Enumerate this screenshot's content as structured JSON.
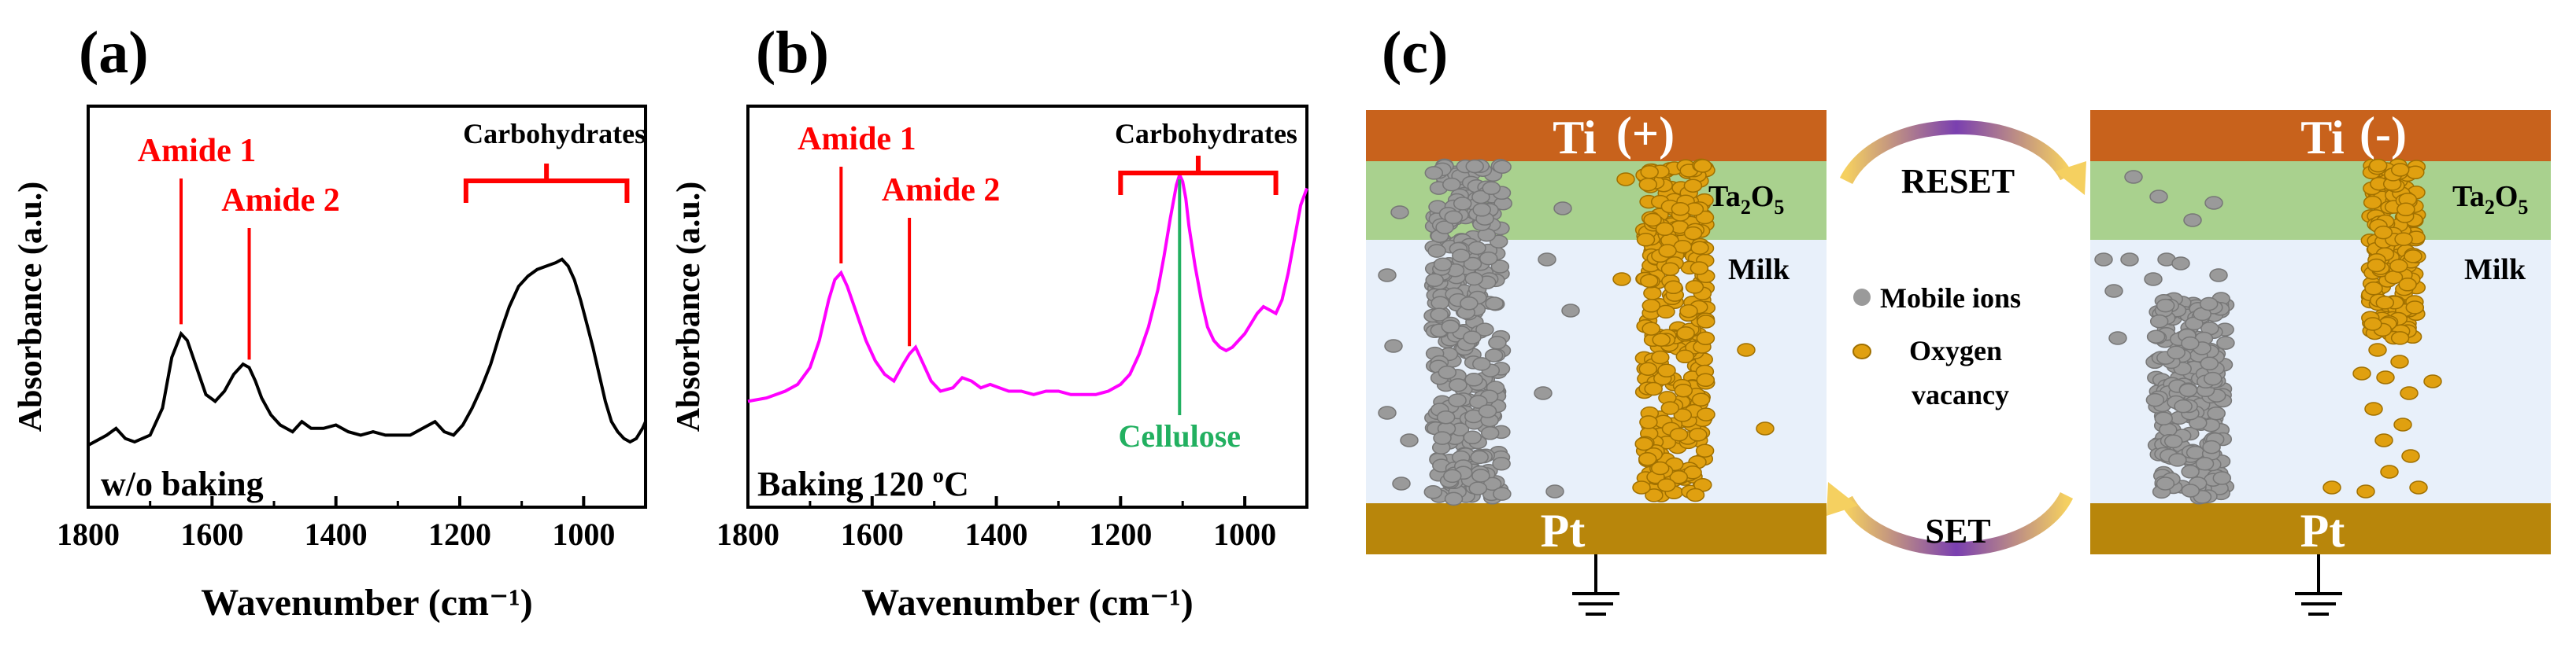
{
  "chart_data": [
    {
      "type": "line",
      "panel": "(a)",
      "annotation": "w/o baking",
      "xlabel": "Wavenumber (cm⁻¹)",
      "ylabel": "Absorbance (a.u.)",
      "xlim": [
        1800,
        900
      ],
      "ylim": [
        0,
        1
      ],
      "xticks": [
        "1800",
        "1600",
        "1400",
        "1200",
        "1000"
      ],
      "series": [
        {
          "name": "w/o baking",
          "color": "#000000",
          "x": [
            1800,
            1770,
            1755,
            1740,
            1725,
            1700,
            1680,
            1665,
            1650,
            1640,
            1625,
            1610,
            1595,
            1580,
            1565,
            1550,
            1540,
            1530,
            1520,
            1505,
            1490,
            1470,
            1455,
            1440,
            1420,
            1400,
            1380,
            1360,
            1340,
            1320,
            1300,
            1280,
            1260,
            1240,
            1225,
            1210,
            1195,
            1180,
            1165,
            1150,
            1135,
            1120,
            1105,
            1090,
            1075,
            1060,
            1045,
            1035,
            1025,
            1015,
            1005,
            995,
            985,
            975,
            965,
            955,
            945,
            935,
            925,
            915,
            905,
            900
          ],
          "y": [
            0.09,
            0.12,
            0.14,
            0.11,
            0.1,
            0.12,
            0.2,
            0.35,
            0.42,
            0.4,
            0.32,
            0.24,
            0.22,
            0.25,
            0.3,
            0.33,
            0.32,
            0.28,
            0.23,
            0.18,
            0.15,
            0.13,
            0.16,
            0.14,
            0.14,
            0.15,
            0.13,
            0.12,
            0.13,
            0.12,
            0.12,
            0.12,
            0.14,
            0.16,
            0.13,
            0.12,
            0.15,
            0.2,
            0.26,
            0.33,
            0.42,
            0.5,
            0.56,
            0.59,
            0.61,
            0.62,
            0.63,
            0.64,
            0.62,
            0.58,
            0.52,
            0.45,
            0.38,
            0.3,
            0.22,
            0.16,
            0.13,
            0.11,
            0.1,
            0.11,
            0.14,
            0.16
          ]
        }
      ],
      "annotations": [
        {
          "text": "Amide 1",
          "x": 1650,
          "color": "#ff0000"
        },
        {
          "text": "Amide 2",
          "x": 1540,
          "color": "#ff0000"
        },
        {
          "text": "Carbohydrates",
          "x_range": [
            1190,
            930
          ],
          "color": "#000000",
          "bracket_color": "#ff0000"
        }
      ]
    },
    {
      "type": "line",
      "panel": "(b)",
      "annotation": "Baking 120 ºC",
      "xlabel": "Wavenumber (cm⁻¹)",
      "ylabel": "Absorbance (a.u.)",
      "xlim": [
        1800,
        900
      ],
      "ylim": [
        0,
        1
      ],
      "xticks": [
        "1800",
        "1600",
        "1400",
        "1200",
        "1000"
      ],
      "series": [
        {
          "name": "Baking 120 ºC",
          "color": "#ff00ff",
          "x": [
            1800,
            1770,
            1740,
            1720,
            1700,
            1685,
            1670,
            1660,
            1650,
            1640,
            1625,
            1610,
            1595,
            1580,
            1565,
            1550,
            1540,
            1530,
            1520,
            1505,
            1490,
            1470,
            1455,
            1440,
            1425,
            1410,
            1395,
            1380,
            1360,
            1340,
            1320,
            1300,
            1280,
            1260,
            1240,
            1220,
            1200,
            1185,
            1170,
            1155,
            1140,
            1130,
            1120,
            1110,
            1105,
            1100,
            1095,
            1090,
            1080,
            1070,
            1060,
            1050,
            1040,
            1030,
            1020,
            1010,
            1000,
            990,
            980,
            970,
            960,
            950,
            940,
            930,
            920,
            910,
            900
          ],
          "y": [
            0.22,
            0.23,
            0.25,
            0.27,
            0.32,
            0.4,
            0.52,
            0.58,
            0.6,
            0.56,
            0.48,
            0.4,
            0.34,
            0.3,
            0.28,
            0.33,
            0.36,
            0.38,
            0.34,
            0.28,
            0.25,
            0.26,
            0.29,
            0.28,
            0.26,
            0.27,
            0.26,
            0.25,
            0.25,
            0.24,
            0.25,
            0.25,
            0.24,
            0.24,
            0.24,
            0.25,
            0.27,
            0.3,
            0.36,
            0.44,
            0.55,
            0.65,
            0.76,
            0.86,
            0.89,
            0.87,
            0.82,
            0.74,
            0.62,
            0.52,
            0.44,
            0.4,
            0.38,
            0.37,
            0.38,
            0.4,
            0.42,
            0.45,
            0.48,
            0.5,
            0.49,
            0.48,
            0.52,
            0.6,
            0.7,
            0.8,
            0.85
          ]
        }
      ],
      "annotations": [
        {
          "text": "Amide 1",
          "x": 1650,
          "color": "#ff0000"
        },
        {
          "text": "Amide 2",
          "x": 1540,
          "color": "#ff0000"
        },
        {
          "text": "Carbohydrates",
          "x_range": [
            1200,
            950
          ],
          "color": "#000000",
          "bracket_color": "#ff0000"
        },
        {
          "text": "Cellulose",
          "x": 1105,
          "color": "#22b060"
        }
      ]
    }
  ],
  "schematic": {
    "panel": "(c)",
    "left": {
      "top_electrode": "Ti",
      "polarity": "(+)",
      "oxide": "Ta",
      "oxide_sub1": "2",
      "oxide_mid": "O",
      "oxide_sub2": "5",
      "layer": "Milk",
      "bottom_electrode": "Pt"
    },
    "right": {
      "top_electrode": "Ti",
      "polarity": "(-)",
      "oxide": "Ta",
      "oxide_sub1": "2",
      "oxide_mid": "O",
      "oxide_sub2": "5",
      "layer": "Milk",
      "bottom_electrode": "Pt"
    },
    "reset_label": "RESET",
    "set_label": "SET",
    "legend": {
      "mobile_ions": "Mobile ions",
      "oxygen_line1": "Oxygen",
      "oxygen_line2": "vacancy"
    },
    "colors": {
      "ti": "#c8621c",
      "ta2o5": "#a9d18e",
      "milk": "#e8f0fa",
      "pt": "#b8860b",
      "ion": "#9a9a9a",
      "vacancy": "#e0a010",
      "arrow": "#6a3aa0"
    }
  }
}
